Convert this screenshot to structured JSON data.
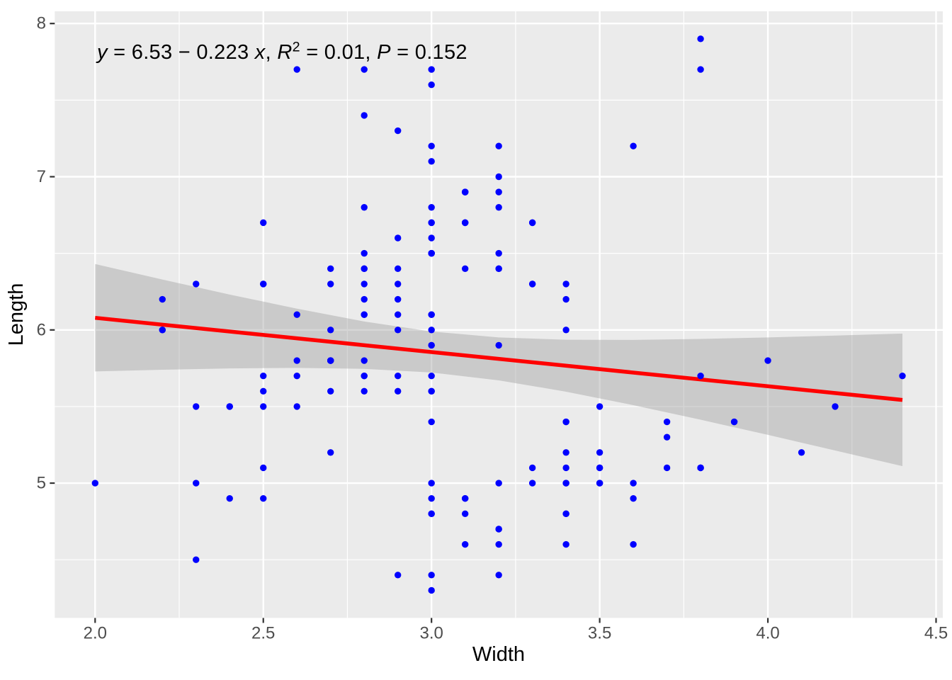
{
  "chart_data": {
    "type": "scatter",
    "title": "",
    "xlabel": "Width",
    "ylabel": "Length",
    "xlim": [
      1.88,
      4.52
    ],
    "ylim": [
      4.12,
      8.08
    ],
    "grid": true,
    "legend": "none",
    "x_ticks": {
      "values": [
        2.0,
        2.5,
        3.0,
        3.5,
        4.0,
        4.5
      ],
      "labels": [
        "2.0",
        "2.5",
        "3.0",
        "3.5",
        "4.0",
        "4.5"
      ]
    },
    "y_ticks": {
      "values": [
        5,
        6,
        7,
        8
      ],
      "labels": [
        "5",
        "6",
        "7",
        "8"
      ]
    },
    "x_minor": [
      2.25,
      2.75,
      3.25,
      3.75,
      4.25
    ],
    "y_minor": [
      4.5,
      5.5,
      6.5,
      7.5
    ],
    "annotation": {
      "text": "y = 6.53 − 0.223 x, R² = 0.01, P = 0.152",
      "segments": [
        {
          "text": "y",
          "italic": true
        },
        {
          "text": " = 6.53 − 0.223 ",
          "italic": false
        },
        {
          "text": "x",
          "italic": true
        },
        {
          "text": ", ",
          "italic": false
        },
        {
          "text": "R",
          "italic": true
        },
        {
          "text": "2",
          "italic": false,
          "sup": true
        },
        {
          "text": " = 0.01, ",
          "italic": false
        },
        {
          "text": "P",
          "italic": true
        },
        {
          "text": " = 0.152",
          "italic": false
        }
      ]
    },
    "regression": {
      "equation": "y = 6.53 − 0.223 x",
      "intercept": 6.53,
      "slope": -0.223,
      "r_squared": "0.01",
      "p_value": "0.152",
      "x1": 2.0,
      "y1": 6.079,
      "x2": 4.4,
      "y2": 5.543
    },
    "ci_band": {
      "x": [
        2.0,
        2.2,
        2.4,
        2.6,
        2.8,
        3.0,
        3.2,
        3.4,
        3.6,
        3.8,
        4.0,
        4.2,
        4.4
      ],
      "lower": [
        5.729,
        5.74,
        5.749,
        5.752,
        5.746,
        5.722,
        5.671,
        5.597,
        5.509,
        5.414,
        5.315,
        5.213,
        5.111
      ],
      "upper": [
        6.43,
        6.329,
        6.231,
        6.139,
        6.055,
        5.99,
        5.951,
        5.936,
        5.935,
        5.941,
        5.951,
        5.963,
        5.976
      ]
    },
    "points": [
      [
        3.5,
        5.1
      ],
      [
        3.0,
        4.9
      ],
      [
        3.2,
        4.7
      ],
      [
        3.1,
        4.6
      ],
      [
        3.6,
        5.0
      ],
      [
        3.9,
        5.4
      ],
      [
        3.4,
        4.6
      ],
      [
        3.4,
        5.0
      ],
      [
        2.9,
        4.4
      ],
      [
        3.1,
        4.9
      ],
      [
        3.7,
        5.4
      ],
      [
        3.4,
        4.8
      ],
      [
        3.0,
        4.8
      ],
      [
        3.0,
        4.3
      ],
      [
        4.0,
        5.8
      ],
      [
        4.4,
        5.7
      ],
      [
        3.9,
        5.4
      ],
      [
        3.5,
        5.1
      ],
      [
        3.8,
        5.7
      ],
      [
        3.8,
        5.1
      ],
      [
        3.4,
        5.4
      ],
      [
        3.7,
        5.1
      ],
      [
        3.6,
        4.6
      ],
      [
        3.3,
        5.1
      ],
      [
        3.4,
        4.8
      ],
      [
        3.0,
        5.0
      ],
      [
        3.4,
        5.0
      ],
      [
        3.5,
        5.2
      ],
      [
        3.4,
        5.2
      ],
      [
        3.2,
        4.7
      ],
      [
        3.1,
        4.8
      ],
      [
        3.4,
        5.4
      ],
      [
        4.1,
        5.2
      ],
      [
        4.2,
        5.5
      ],
      [
        3.1,
        4.9
      ],
      [
        3.2,
        5.0
      ],
      [
        3.5,
        5.5
      ],
      [
        3.6,
        4.9
      ],
      [
        3.0,
        4.4
      ],
      [
        3.4,
        5.1
      ],
      [
        3.5,
        5.0
      ],
      [
        2.3,
        4.5
      ],
      [
        3.2,
        4.4
      ],
      [
        3.5,
        5.0
      ],
      [
        3.8,
        5.1
      ],
      [
        3.0,
        4.8
      ],
      [
        3.8,
        5.1
      ],
      [
        3.2,
        4.6
      ],
      [
        3.7,
        5.3
      ],
      [
        3.3,
        5.0
      ],
      [
        3.2,
        7.0
      ],
      [
        3.2,
        6.4
      ],
      [
        3.1,
        6.9
      ],
      [
        2.3,
        5.5
      ],
      [
        2.8,
        6.5
      ],
      [
        2.8,
        5.7
      ],
      [
        3.3,
        6.3
      ],
      [
        2.4,
        4.9
      ],
      [
        2.9,
        6.6
      ],
      [
        2.7,
        5.2
      ],
      [
        2.0,
        5.0
      ],
      [
        3.0,
        5.9
      ],
      [
        2.2,
        6.0
      ],
      [
        2.9,
        6.1
      ],
      [
        2.9,
        5.6
      ],
      [
        3.1,
        6.7
      ],
      [
        3.0,
        5.6
      ],
      [
        2.7,
        5.8
      ],
      [
        2.2,
        6.2
      ],
      [
        2.5,
        5.6
      ],
      [
        3.2,
        5.9
      ],
      [
        2.8,
        6.1
      ],
      [
        2.5,
        6.3
      ],
      [
        2.8,
        6.1
      ],
      [
        2.9,
        6.4
      ],
      [
        3.0,
        6.6
      ],
      [
        2.8,
        6.8
      ],
      [
        3.0,
        6.7
      ],
      [
        2.9,
        6.0
      ],
      [
        2.6,
        5.7
      ],
      [
        2.4,
        5.5
      ],
      [
        2.4,
        5.5
      ],
      [
        2.7,
        5.8
      ],
      [
        2.7,
        6.0
      ],
      [
        3.0,
        5.4
      ],
      [
        3.4,
        6.0
      ],
      [
        3.1,
        6.7
      ],
      [
        2.3,
        6.3
      ],
      [
        3.0,
        5.6
      ],
      [
        2.5,
        5.5
      ],
      [
        2.6,
        5.5
      ],
      [
        3.0,
        6.1
      ],
      [
        2.6,
        5.8
      ],
      [
        2.3,
        5.0
      ],
      [
        2.7,
        5.6
      ],
      [
        3.0,
        5.7
      ],
      [
        2.9,
        5.7
      ],
      [
        2.9,
        6.2
      ],
      [
        2.5,
        5.1
      ],
      [
        2.8,
        5.7
      ],
      [
        3.3,
        6.3
      ],
      [
        2.7,
        5.8
      ],
      [
        3.0,
        7.1
      ],
      [
        2.9,
        6.3
      ],
      [
        3.0,
        6.5
      ],
      [
        3.0,
        7.6
      ],
      [
        2.5,
        4.9
      ],
      [
        2.9,
        7.3
      ],
      [
        2.5,
        6.7
      ],
      [
        3.6,
        7.2
      ],
      [
        3.2,
        6.5
      ],
      [
        2.7,
        6.4
      ],
      [
        3.0,
        6.8
      ],
      [
        2.5,
        5.7
      ],
      [
        2.8,
        5.8
      ],
      [
        3.2,
        6.4
      ],
      [
        3.0,
        6.5
      ],
      [
        3.8,
        7.7
      ],
      [
        2.6,
        7.7
      ],
      [
        2.2,
        6.0
      ],
      [
        3.2,
        6.9
      ],
      [
        2.8,
        5.6
      ],
      [
        2.8,
        7.7
      ],
      [
        2.7,
        6.3
      ],
      [
        3.3,
        6.7
      ],
      [
        3.2,
        7.2
      ],
      [
        2.8,
        6.2
      ],
      [
        3.0,
        6.1
      ],
      [
        2.8,
        6.4
      ],
      [
        3.0,
        7.2
      ],
      [
        2.8,
        7.4
      ],
      [
        3.8,
        7.9
      ],
      [
        2.8,
        6.4
      ],
      [
        2.8,
        6.3
      ],
      [
        2.6,
        6.1
      ],
      [
        3.0,
        7.7
      ],
      [
        3.4,
        6.3
      ],
      [
        3.1,
        6.4
      ],
      [
        3.0,
        6.0
      ],
      [
        3.1,
        6.9
      ],
      [
        3.1,
        6.7
      ],
      [
        3.1,
        6.9
      ],
      [
        2.7,
        5.8
      ],
      [
        3.2,
        6.8
      ],
      [
        3.3,
        6.7
      ],
      [
        3.0,
        6.7
      ],
      [
        2.5,
        6.3
      ],
      [
        3.0,
        6.5
      ],
      [
        3.4,
        6.2
      ],
      [
        3.0,
        5.9
      ]
    ],
    "colors": {
      "point": "#0000FF",
      "regression_line": "#FF0000",
      "confidence_band": "#999999",
      "confidence_band_opacity": 0.4,
      "panel_background": "#EBEBEB",
      "gridline": "#FFFFFF",
      "tick_label": "#4D4D4D",
      "tick_mark": "#333333",
      "axis_title": "#000000",
      "annotation": "#000000"
    }
  }
}
